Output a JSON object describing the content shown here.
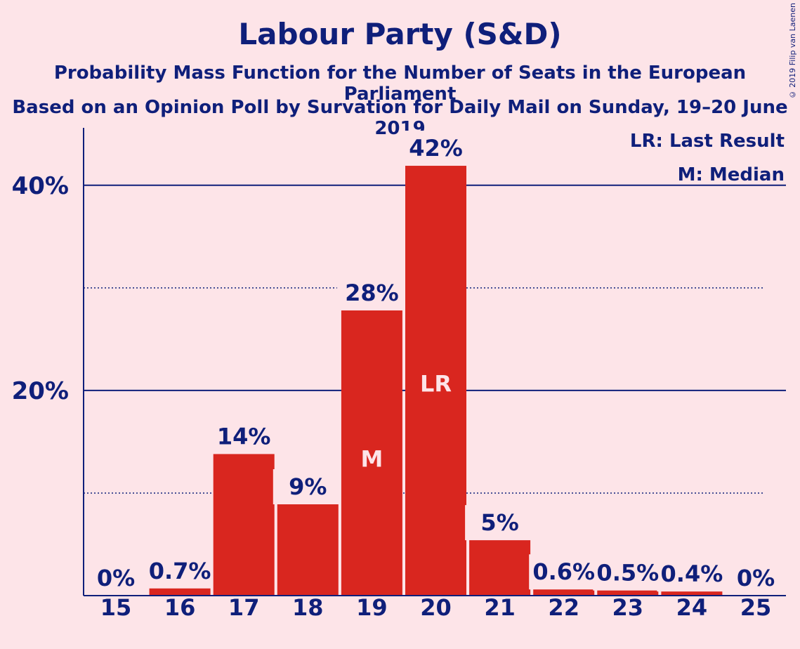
{
  "title": "Labour Party (S&D)",
  "subtitle1": "Probability Mass Function for the Number of Seats in the European Parliament",
  "subtitle2": "Based on an Opinion Poll by Survation for Daily Mail on Sunday, 19–20 June 2019",
  "copyright": "© 2019 Filip van Laenen",
  "legend": {
    "last_result": "LR: Last Result",
    "median": "M: Median"
  },
  "colors": {
    "bar": "#d9261f",
    "text": "#0f1f7a",
    "background": "#fde4e8"
  },
  "chart_data": {
    "type": "bar",
    "categories": [
      "15",
      "16",
      "17",
      "18",
      "19",
      "20",
      "21",
      "22",
      "23",
      "24",
      "25"
    ],
    "values": [
      0,
      0.7,
      13.8,
      8.9,
      27.8,
      41.9,
      5.4,
      0.6,
      0.5,
      0.4,
      0
    ],
    "labels": [
      "0%",
      "0.7%",
      "14%",
      "9%",
      "28%",
      "42%",
      "5%",
      "0.6%",
      "0.5%",
      "0.4%",
      "0%"
    ],
    "bar_marks": {
      "19": "M",
      "20": "LR"
    },
    "yticks": [
      {
        "value": 20,
        "label": "20%"
      },
      {
        "value": 40,
        "label": "40%"
      }
    ],
    "minor_grid": [
      10,
      30
    ],
    "ylim": [
      0,
      45.6
    ],
    "legend_position": "top-right"
  }
}
